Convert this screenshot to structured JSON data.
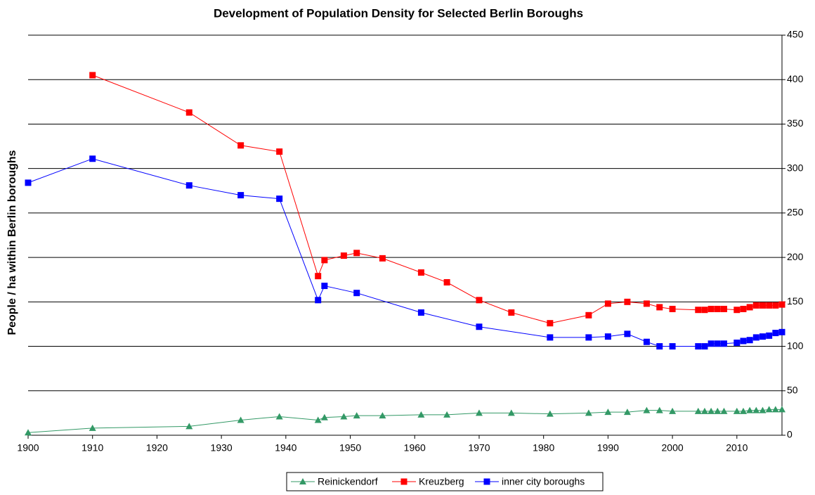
{
  "chart_data": {
    "type": "line",
    "title": "Development of Population Density for Selected Berlin Boroughs",
    "y_label": "People / ha within Berlin boroughs",
    "xlim": [
      1900,
      2017
    ],
    "xticks": [
      1900,
      1910,
      1920,
      1930,
      1940,
      1950,
      1960,
      1970,
      1980,
      1990,
      2000,
      2010
    ],
    "ylim": [
      0,
      450
    ],
    "yticks": [
      0,
      50,
      100,
      150,
      200,
      250,
      300,
      350,
      400,
      450
    ],
    "grid": true,
    "y_axis_side": "right",
    "legend": "bottom",
    "series": [
      {
        "name": "Reinickendorf",
        "color": "#339966",
        "marker": "triangle",
        "x": [
          1900,
          1910,
          1925,
          1933,
          1939,
          1945,
          1946,
          1949,
          1951,
          1955,
          1961,
          1965,
          1970,
          1975,
          1981,
          1987,
          1990,
          1993,
          1996,
          1998,
          2000,
          2004,
          2005,
          2006,
          2007,
          2008,
          2010,
          2011,
          2012,
          2013,
          2014,
          2015,
          2016,
          2017
        ],
        "values": [
          3,
          8,
          10,
          17,
          21,
          17,
          20,
          21,
          22,
          22,
          23,
          23,
          25,
          25,
          24,
          25,
          26,
          26,
          28,
          28,
          27,
          27,
          27,
          27,
          27,
          27,
          27,
          27,
          28,
          28,
          28,
          29,
          29,
          29
        ]
      },
      {
        "name": "Kreuzberg",
        "color": "#ff0000",
        "marker": "square",
        "x": [
          1910,
          1925,
          1933,
          1939,
          1945,
          1946,
          1949,
          1951,
          1955,
          1961,
          1965,
          1970,
          1975,
          1981,
          1987,
          1990,
          1993,
          1996,
          1998,
          2000,
          2004,
          2005,
          2006,
          2007,
          2008,
          2010,
          2011,
          2012,
          2013,
          2014,
          2015,
          2016,
          2017
        ],
        "values": [
          405,
          363,
          326,
          319,
          179,
          197,
          202,
          205,
          199,
          183,
          172,
          152,
          138,
          126,
          135,
          148,
          150,
          148,
          144,
          142,
          141,
          141,
          142,
          142,
          142,
          141,
          142,
          144,
          146,
          146,
          146,
          146,
          147
        ]
      },
      {
        "name": "inner city boroughs",
        "color": "#0000ff",
        "marker": "square",
        "x": [
          1900,
          1910,
          1925,
          1933,
          1939,
          1945,
          1946,
          1951,
          1961,
          1970,
          1981,
          1987,
          1990,
          1993,
          1996,
          1998,
          2000,
          2004,
          2005,
          2006,
          2007,
          2008,
          2010,
          2011,
          2012,
          2013,
          2014,
          2015,
          2016,
          2017
        ],
        "values": [
          284,
          311,
          281,
          270,
          266,
          152,
          168,
          160,
          138,
          122,
          110,
          110,
          111,
          114,
          105,
          100,
          100,
          100,
          100,
          103,
          103,
          103,
          104,
          106,
          107,
          110,
          111,
          112,
          115,
          116
        ]
      }
    ]
  }
}
